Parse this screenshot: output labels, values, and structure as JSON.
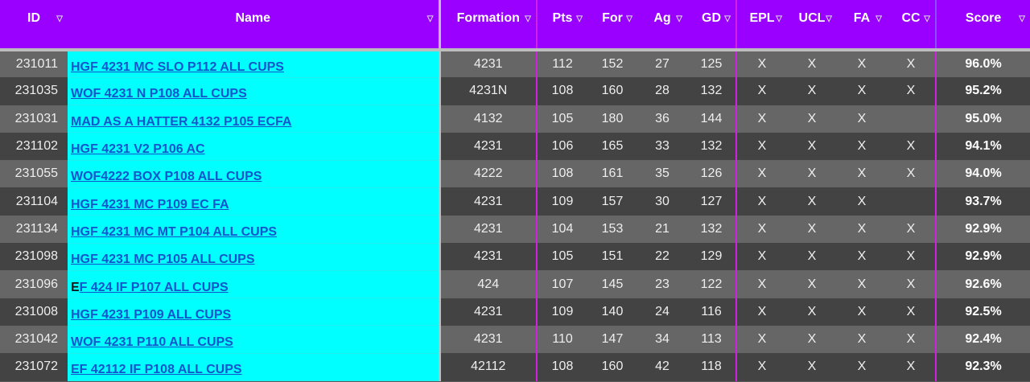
{
  "columns": [
    "ID",
    "Name",
    "Formation",
    "Pts",
    "For",
    "Ag",
    "GD",
    "EPL",
    "UCL",
    "FA",
    "CC",
    "Score"
  ],
  "colors": {
    "header": "#9900ff",
    "name_bg": "#00ffff",
    "link": "#1155cc",
    "row_light": "#666666",
    "row_dark": "#434343",
    "divider": "#d020e0"
  },
  "rows": [
    {
      "id": "231011",
      "name": "HGF 4231 MC SLO P112 ALL CUPS",
      "formation": "4231",
      "pts": "112",
      "for": "152",
      "ag": "27",
      "gd": "125",
      "epl": "X",
      "ucl": "X",
      "fa": "X",
      "cc": "X",
      "score": "96.0%"
    },
    {
      "id": "231035",
      "name": "WOF 4231 N P108 ALL CUPS",
      "formation": "4231N",
      "pts": "108",
      "for": "160",
      "ag": "28",
      "gd": "132",
      "epl": "X",
      "ucl": "X",
      "fa": "X",
      "cc": "X",
      "score": "95.2%"
    },
    {
      "id": "231031",
      "name": "MAD AS A HATTER 4132 P105 ECFA",
      "formation": "4132",
      "pts": "105",
      "for": "180",
      "ag": "36",
      "gd": "144",
      "epl": "X",
      "ucl": "X",
      "fa": "X",
      "cc": "",
      "score": "95.0%"
    },
    {
      "id": "231102",
      "name": "HGF 4231 V2 P106 AC",
      "formation": "4231",
      "pts": "106",
      "for": "165",
      "ag": "33",
      "gd": "132",
      "epl": "X",
      "ucl": "X",
      "fa": "X",
      "cc": "X",
      "score": "94.1%"
    },
    {
      "id": "231055",
      "name": "WOF4222 BOX P108 ALL CUPS",
      "formation": "4222",
      "pts": "108",
      "for": "161",
      "ag": "35",
      "gd": "126",
      "epl": "X",
      "ucl": "X",
      "fa": "X",
      "cc": "X",
      "score": "94.0%"
    },
    {
      "id": "231104",
      "name": "HGF 4231 MC P109 EC FA",
      "formation": "4231",
      "pts": "109",
      "for": "157",
      "ag": "30",
      "gd": "127",
      "epl": "X",
      "ucl": "X",
      "fa": "X",
      "cc": "",
      "score": "93.7%"
    },
    {
      "id": "231134",
      "name": "HGF 4231 MC MT P104 ALL CUPS",
      "formation": "4231",
      "pts": "104",
      "for": "153",
      "ag": "21",
      "gd": "132",
      "epl": "X",
      "ucl": "X",
      "fa": "X",
      "cc": "X",
      "score": "92.9%"
    },
    {
      "id": "231098",
      "name": "HGF 4231 MC P105 ALL CUPS",
      "formation": "4231",
      "pts": "105",
      "for": "151",
      "ag": "22",
      "gd": "129",
      "epl": "X",
      "ucl": "X",
      "fa": "X",
      "cc": "X",
      "score": "92.9%"
    },
    {
      "id": "231096",
      "name_prefix": "E",
      "name": "F 424 IF P107 ALL CUPS",
      "formation": "424",
      "pts": "107",
      "for": "145",
      "ag": "23",
      "gd": "122",
      "epl": "X",
      "ucl": "X",
      "fa": "X",
      "cc": "X",
      "score": "92.6%"
    },
    {
      "id": "231008",
      "name": "HGF 4231 P109 ALL CUPS",
      "formation": "4231",
      "pts": "109",
      "for": "140",
      "ag": "24",
      "gd": "116",
      "epl": "X",
      "ucl": "X",
      "fa": "X",
      "cc": "X",
      "score": "92.5%"
    },
    {
      "id": "231042",
      "name": "WOF 4231 P110 ALL CUPS",
      "formation": "4231",
      "pts": "110",
      "for": "147",
      "ag": "34",
      "gd": "113",
      "epl": "X",
      "ucl": "X",
      "fa": "X",
      "cc": "X",
      "score": "92.4%"
    },
    {
      "id": "231072",
      "name": "EF 42112 IF P108 ALL CUPS",
      "formation": "42112",
      "pts": "108",
      "for": "160",
      "ag": "42",
      "gd": "118",
      "epl": "X",
      "ucl": "X",
      "fa": "X",
      "cc": "X",
      "score": "92.3%"
    }
  ]
}
